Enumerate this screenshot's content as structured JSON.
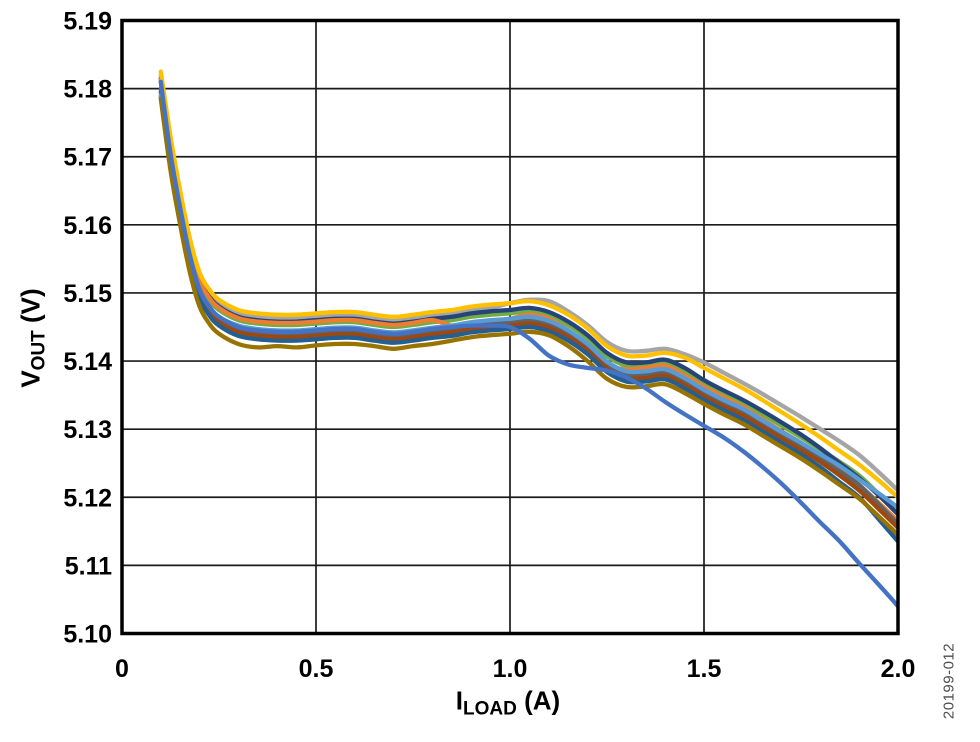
{
  "figure_code": "20199-012",
  "chart_data": {
    "type": "line",
    "title": "",
    "xlabel": "ILOAD (A)",
    "ylabel": "VOUT (V)",
    "xlabel_parts": {
      "main": "I",
      "sub": "LOAD",
      "unit": " (A)"
    },
    "ylabel_parts": {
      "main": "V",
      "sub": "OUT",
      "unit": " (V)"
    },
    "xlim": [
      0,
      2.0
    ],
    "ylim": [
      5.1,
      5.19
    ],
    "x_tick_labels": [
      "0",
      "0.5",
      "1.0",
      "1.5",
      "2.0"
    ],
    "x_tick_values": [
      0,
      0.5,
      1.0,
      1.5,
      2.0
    ],
    "y_tick_labels": [
      "5.19",
      "5.18",
      "5.17",
      "5.16",
      "5.15",
      "5.14",
      "5.13",
      "5.12",
      "5.11",
      "5.10"
    ],
    "y_tick_values": [
      5.19,
      5.18,
      5.17,
      5.16,
      5.15,
      5.14,
      5.13,
      5.12,
      5.11,
      5.1
    ],
    "grid": "on",
    "grid_x": [
      0.5,
      1.0,
      1.5
    ],
    "grid_y": [
      5.18,
      5.17,
      5.16,
      5.15,
      5.14,
      5.13,
      5.12,
      5.11
    ],
    "legend": "none",
    "axis_color": "#000000",
    "grid_color": "#1a1a1a",
    "x": [
      0.1,
      0.125,
      0.15,
      0.175,
      0.2,
      0.225,
      0.25,
      0.3,
      0.35,
      0.4,
      0.45,
      0.5,
      0.55,
      0.6,
      0.65,
      0.7,
      0.75,
      0.8,
      0.85,
      0.9,
      0.95,
      1.0,
      1.05,
      1.1,
      1.15,
      1.2,
      1.25,
      1.3,
      1.35,
      1.4,
      1.45,
      1.5,
      1.55,
      1.6,
      1.65,
      1.7,
      1.75,
      1.8,
      1.85,
      1.9,
      1.95,
      2.0
    ],
    "series": [
      {
        "name": "gray",
        "color": "#A5A5A5",
        "values": [
          5.182,
          5.1725,
          5.1645,
          5.1575,
          5.1525,
          5.15,
          5.1485,
          5.147,
          5.1465,
          5.1463,
          5.1463,
          5.1465,
          5.1467,
          5.1467,
          5.1463,
          5.146,
          5.1463,
          5.1467,
          5.147,
          5.1475,
          5.1478,
          5.1485,
          5.149,
          5.1488,
          5.1473,
          5.1453,
          5.1428,
          5.1415,
          5.1415,
          5.1418,
          5.141,
          5.1398,
          5.1383,
          5.1368,
          5.1352,
          5.1335,
          5.1318,
          5.13,
          5.1282,
          5.1262,
          5.1237,
          5.121
        ]
      },
      {
        "name": "green",
        "color": "#70AD47",
        "values": [
          5.181,
          5.1715,
          5.1635,
          5.1565,
          5.1515,
          5.149,
          5.1475,
          5.146,
          5.1455,
          5.1453,
          5.1453,
          5.1455,
          5.1457,
          5.1457,
          5.1453,
          5.145,
          5.1453,
          5.1457,
          5.146,
          5.1465,
          5.1468,
          5.147,
          5.1473,
          5.1467,
          5.1453,
          5.1433,
          5.1407,
          5.1393,
          5.1393,
          5.1397,
          5.1384,
          5.1367,
          5.1352,
          5.1338,
          5.1322,
          5.1305,
          5.1288,
          5.127,
          5.1252,
          5.1232,
          5.1205,
          5.1175
        ]
      },
      {
        "name": "navy",
        "color": "#264478",
        "values": [
          5.1815,
          5.172,
          5.164,
          5.157,
          5.152,
          5.1495,
          5.148,
          5.1465,
          5.146,
          5.1458,
          5.1458,
          5.146,
          5.1462,
          5.1462,
          5.1458,
          5.1455,
          5.1458,
          5.1462,
          5.1465,
          5.147,
          5.1473,
          5.1475,
          5.1478,
          5.1472,
          5.1458,
          5.1438,
          5.1412,
          5.1398,
          5.1398,
          5.1402,
          5.139,
          5.1372,
          5.1357,
          5.1343,
          5.1327,
          5.131,
          5.1292,
          5.1272,
          5.125,
          5.1228,
          5.1203,
          5.1175
        ]
      },
      {
        "name": "orange",
        "color": "#ED7D31",
        "values": [
          5.1813,
          5.1718,
          5.1638,
          5.1568,
          5.1518,
          5.1493,
          5.1478,
          5.1463,
          5.1458,
          5.1456,
          5.1456,
          5.1458,
          5.146,
          5.146,
          5.1456,
          5.1453,
          5.1456,
          5.146,
          5.1452,
          5.1448,
          5.1455,
          5.1462,
          5.1468,
          5.1462,
          5.1445,
          5.1422,
          5.1395,
          5.1388,
          5.139,
          5.1393,
          5.1379,
          5.1362,
          5.1347,
          5.1333,
          5.1315,
          5.1297,
          5.128,
          5.126,
          5.124,
          5.1218,
          5.1192,
          5.1165
        ]
      },
      {
        "name": "dark-gray",
        "color": "#636363",
        "values": [
          5.18,
          5.1702,
          5.1622,
          5.1552,
          5.1502,
          5.1477,
          5.1462,
          5.1447,
          5.1442,
          5.144,
          5.144,
          5.1442,
          5.1444,
          5.1444,
          5.144,
          5.1437,
          5.144,
          5.1444,
          5.1447,
          5.1452,
          5.1455,
          5.1457,
          5.146,
          5.1454,
          5.144,
          5.142,
          5.1394,
          5.138,
          5.138,
          5.1383,
          5.137,
          5.1353,
          5.1338,
          5.1325,
          5.1308,
          5.1291,
          5.1274,
          5.1257,
          5.1238,
          5.1218,
          5.119,
          5.116
        ]
      },
      {
        "name": "brown",
        "color": "#9E480E",
        "values": [
          5.1795,
          5.1697,
          5.1617,
          5.1547,
          5.1497,
          5.1472,
          5.1457,
          5.1442,
          5.1437,
          5.1435,
          5.1435,
          5.1437,
          5.1439,
          5.1439,
          5.1435,
          5.1432,
          5.1435,
          5.1439,
          5.1442,
          5.1447,
          5.145,
          5.1452,
          5.1455,
          5.1449,
          5.1435,
          5.1415,
          5.1389,
          5.1375,
          5.1375,
          5.1378,
          5.1365,
          5.1348,
          5.1333,
          5.132,
          5.1303,
          5.1286,
          5.1269,
          5.1252,
          5.1232,
          5.121,
          5.1183,
          5.1155
        ]
      },
      {
        "name": "steel-blue",
        "color": "#255E91",
        "values": [
          5.1788,
          5.1692,
          5.1612,
          5.1542,
          5.1492,
          5.1467,
          5.1452,
          5.1437,
          5.1432,
          5.143,
          5.143,
          5.1432,
          5.1434,
          5.1434,
          5.143,
          5.1427,
          5.143,
          5.1434,
          5.1437,
          5.1442,
          5.1445,
          5.1447,
          5.145,
          5.1444,
          5.143,
          5.141,
          5.1384,
          5.137,
          5.137,
          5.1373,
          5.136,
          5.1343,
          5.1328,
          5.1314,
          5.1297,
          5.128,
          5.1263,
          5.1244,
          5.1222,
          5.12,
          5.1168,
          5.1135
        ]
      },
      {
        "name": "light-blue",
        "color": "#5B9BD5",
        "values": [
          5.179,
          5.1705,
          5.1625,
          5.1555,
          5.1505,
          5.148,
          5.1465,
          5.1452,
          5.1447,
          5.1445,
          5.1445,
          5.1447,
          5.1449,
          5.1449,
          5.1445,
          5.1442,
          5.1445,
          5.1449,
          5.1452,
          5.1457,
          5.146,
          5.1462,
          5.1465,
          5.1459,
          5.1445,
          5.1425,
          5.1399,
          5.1385,
          5.1385,
          5.1388,
          5.1375,
          5.1358,
          5.1343,
          5.133,
          5.1313,
          5.1296,
          5.128,
          5.1263,
          5.1246,
          5.1226,
          5.1206,
          5.1185
        ]
      },
      {
        "name": "olive",
        "color": "#997300",
        "values": [
          5.1785,
          5.168,
          5.16,
          5.153,
          5.148,
          5.1455,
          5.144,
          5.1425,
          5.142,
          5.1422,
          5.142,
          5.1423,
          5.1425,
          5.1425,
          5.1422,
          5.1418,
          5.1422,
          5.1425,
          5.143,
          5.1435,
          5.1438,
          5.144,
          5.1443,
          5.1438,
          5.1422,
          5.14,
          5.1374,
          5.1362,
          5.1363,
          5.1366,
          5.1353,
          5.1337,
          5.1322,
          5.1308,
          5.1291,
          5.1274,
          5.1257,
          5.1238,
          5.1218,
          5.1198,
          5.1172,
          5.1145
        ]
      },
      {
        "name": "gold",
        "color": "#FFC000",
        "values": [
          5.1825,
          5.173,
          5.165,
          5.158,
          5.153,
          5.1505,
          5.149,
          5.1475,
          5.147,
          5.1468,
          5.1468,
          5.147,
          5.1472,
          5.1472,
          5.1468,
          5.1465,
          5.1468,
          5.1472,
          5.1475,
          5.148,
          5.1483,
          5.1485,
          5.1488,
          5.1482,
          5.1468,
          5.1448,
          5.1422,
          5.1408,
          5.1408,
          5.1412,
          5.1405,
          5.139,
          5.1375,
          5.136,
          5.1343,
          5.1325,
          5.1307,
          5.1288,
          5.1268,
          5.1248,
          5.1225,
          5.12
        ]
      },
      {
        "name": "blue",
        "color": "#4472C4",
        "values": [
          5.181,
          5.1705,
          5.1625,
          5.1555,
          5.1505,
          5.148,
          5.1465,
          5.145,
          5.1445,
          5.1443,
          5.1443,
          5.1445,
          5.1447,
          5.1447,
          5.1443,
          5.144,
          5.1443,
          5.1447,
          5.145,
          5.1452,
          5.1452,
          5.145,
          5.1433,
          5.1408,
          5.1395,
          5.139,
          5.1386,
          5.1376,
          5.136,
          5.134,
          5.1322,
          5.1305,
          5.1288,
          5.1268,
          5.1245,
          5.122,
          5.1192,
          5.1163,
          5.1135,
          5.1103,
          5.1072,
          5.104
        ]
      }
    ]
  }
}
